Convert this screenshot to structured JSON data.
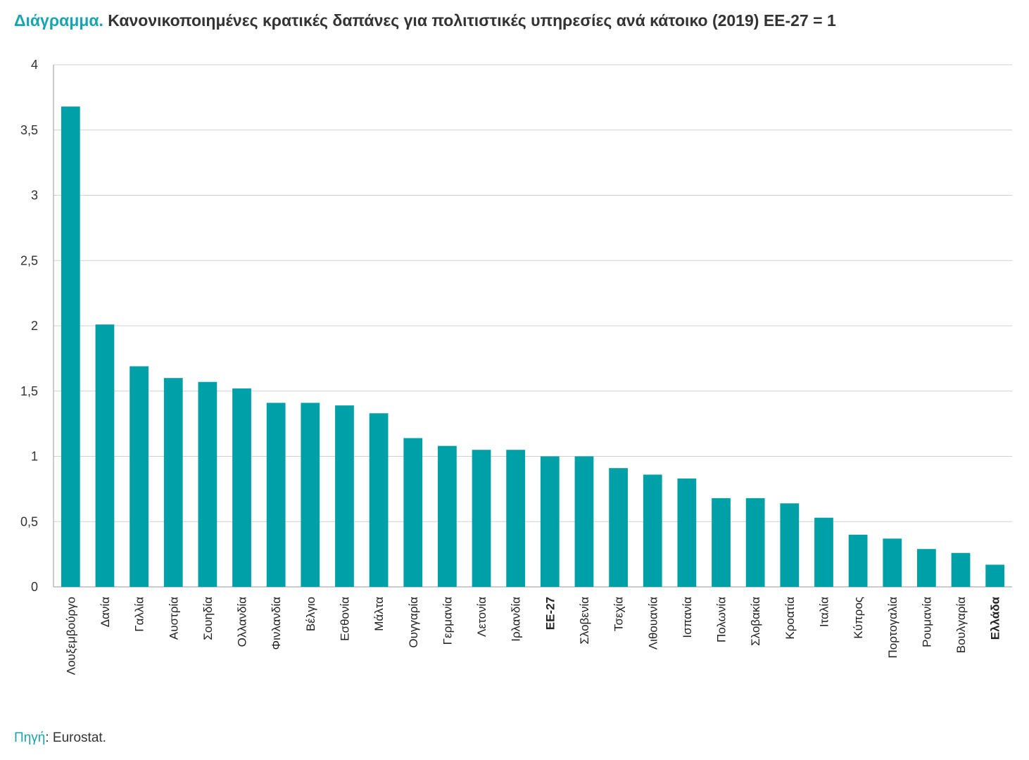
{
  "title": {
    "lead": "Διάγραμμα.",
    "text": "Κανονικοποιημένες κρατικές δαπάνες για πολιτιστικές υπηρεσίες ανά κάτοικο (2019) ΕΕ-27 = 1"
  },
  "source": {
    "label": "Πηγή",
    "text": ": Eurostat."
  },
  "colors": {
    "bar": "#00a0a8",
    "accent": "#18a5b0",
    "grid": "#d0d0d0"
  },
  "chart_data": {
    "type": "bar",
    "title": "Κανονικοποιημένες κρατικές δαπάνες για πολιτιστικές υπηρεσίες ανά κάτοικο (2019) ΕΕ-27 = 1",
    "xlabel": "",
    "ylabel": "",
    "ylim": [
      0,
      4
    ],
    "yticks": [
      "0",
      "0,5",
      "1",
      "1,5",
      "2",
      "2,5",
      "3",
      "3,5",
      "4"
    ],
    "grid": true,
    "legend": "none",
    "highlighted_categories": [
      "ΕΕ-27",
      "Ελλάδα"
    ],
    "categories": [
      "Λουξεμβούργο",
      "Δανία",
      "Γαλλία",
      "Αυστρία",
      "Σουηδία",
      "Ολλανδία",
      "Φινλανδία",
      "Βέλγιο",
      "Εσθονία",
      "Μάλτα",
      "Ουγγαρία",
      "Γερμανία",
      "Λετονία",
      "Ιρλανδία",
      "ΕΕ-27",
      "Σλοβενία",
      "Τσεχία",
      "Λιθουανία",
      "Ισπανία",
      "Πολωνία",
      "Σλοβακία",
      "Κροατία",
      "Ιταλία",
      "Κύπρος",
      "Πορτογαλία",
      "Ρουμανία",
      "Βουλγαρία",
      "Ελλάδα"
    ],
    "values": [
      3.68,
      2.01,
      1.69,
      1.6,
      1.57,
      1.52,
      1.41,
      1.41,
      1.39,
      1.33,
      1.14,
      1.08,
      1.05,
      1.05,
      1.0,
      1.0,
      0.91,
      0.86,
      0.83,
      0.68,
      0.68,
      0.64,
      0.53,
      0.4,
      0.37,
      0.29,
      0.26,
      0.17
    ]
  }
}
